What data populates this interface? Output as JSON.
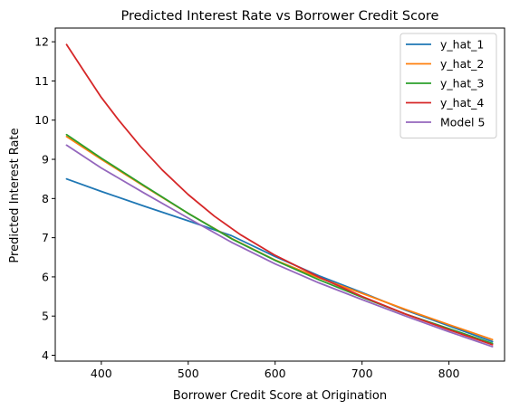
{
  "chart_data": {
    "type": "line",
    "title": "Predicted Interest Rate vs Borrower Credit Score",
    "xlabel": "Borrower Credit Score at Origination",
    "ylabel": "Predicted Interest Rate",
    "xlim": [
      347,
      864
    ],
    "ylim": [
      3.85,
      12.35
    ],
    "xticks": [
      400,
      500,
      600,
      700,
      800
    ],
    "yticks": [
      4,
      5,
      6,
      7,
      8,
      9,
      10,
      11,
      12
    ],
    "grid": false,
    "legend_position": "top-right",
    "series": [
      {
        "name": "y_hat_1",
        "color": "#1f77b4",
        "points": [
          [
            360,
            8.5
          ],
          [
            400,
            8.18
          ],
          [
            450,
            7.8
          ],
          [
            500,
            7.43
          ],
          [
            550,
            7.05
          ],
          [
            600,
            6.52
          ],
          [
            650,
            6.03
          ],
          [
            700,
            5.6
          ],
          [
            750,
            5.15
          ],
          [
            800,
            4.75
          ],
          [
            850,
            4.35
          ]
        ]
      },
      {
        "name": "y_hat_2",
        "color": "#ff7f0e",
        "points": [
          [
            360,
            9.58
          ],
          [
            400,
            9.0
          ],
          [
            450,
            8.3
          ],
          [
            500,
            7.62
          ],
          [
            550,
            6.98
          ],
          [
            600,
            6.43
          ],
          [
            650,
            5.98
          ],
          [
            700,
            5.58
          ],
          [
            750,
            5.17
          ],
          [
            800,
            4.78
          ],
          [
            850,
            4.4
          ]
        ]
      },
      {
        "name": "y_hat_3",
        "color": "#2ca02c",
        "points": [
          [
            360,
            9.63
          ],
          [
            400,
            9.03
          ],
          [
            450,
            8.32
          ],
          [
            500,
            7.62
          ],
          [
            550,
            6.97
          ],
          [
            600,
            6.42
          ],
          [
            650,
            5.93
          ],
          [
            700,
            5.48
          ],
          [
            750,
            5.05
          ],
          [
            800,
            4.68
          ],
          [
            850,
            4.3
          ]
        ]
      },
      {
        "name": "y_hat_4",
        "color": "#d62728",
        "points": [
          [
            360,
            11.93
          ],
          [
            380,
            11.25
          ],
          [
            400,
            10.58
          ],
          [
            420,
            10.0
          ],
          [
            445,
            9.33
          ],
          [
            470,
            8.73
          ],
          [
            500,
            8.1
          ],
          [
            530,
            7.55
          ],
          [
            560,
            7.08
          ],
          [
            600,
            6.55
          ],
          [
            650,
            6.0
          ],
          [
            700,
            5.5
          ],
          [
            750,
            5.05
          ],
          [
            800,
            4.65
          ],
          [
            850,
            4.27
          ]
        ]
      },
      {
        "name": "Model 5",
        "color": "#9467bd",
        "points": [
          [
            360,
            9.36
          ],
          [
            400,
            8.78
          ],
          [
            450,
            8.13
          ],
          [
            500,
            7.5
          ],
          [
            550,
            6.88
          ],
          [
            600,
            6.33
          ],
          [
            650,
            5.85
          ],
          [
            700,
            5.42
          ],
          [
            750,
            5.0
          ],
          [
            800,
            4.6
          ],
          [
            850,
            4.22
          ]
        ]
      }
    ]
  }
}
